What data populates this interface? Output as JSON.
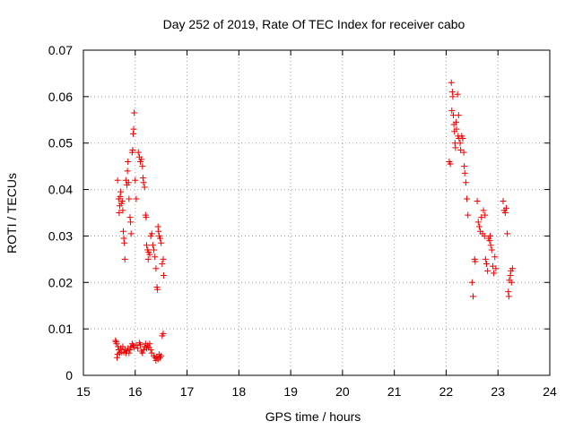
{
  "chart_data": {
    "type": "scatter",
    "title": "Day 252 of 2019, Rate Of TEC Index for receiver cabo",
    "xlabel": "GPS time / hours",
    "ylabel": "ROTI / TECUs",
    "xlim": [
      15,
      24
    ],
    "ylim": [
      0,
      0.07
    ],
    "x_ticks": [
      "15",
      "16",
      "17",
      "18",
      "19",
      "20",
      "21",
      "22",
      "23",
      "24"
    ],
    "y_ticks": [
      "0",
      "0.01",
      "0.02",
      "0.03",
      "0.04",
      "0.05",
      "0.06",
      "0.07"
    ],
    "grid": true,
    "marker": "+",
    "color": "#ee0000",
    "series": [
      {
        "name": "ROTI",
        "points": [
          [
            15.62,
            0.0075
          ],
          [
            15.63,
            0.0072
          ],
          [
            15.64,
            0.0068
          ],
          [
            15.65,
            0.0038
          ],
          [
            15.66,
            0.0045
          ],
          [
            15.67,
            0.0062
          ],
          [
            15.68,
            0.0055
          ],
          [
            15.7,
            0.0048
          ],
          [
            15.72,
            0.0058
          ],
          [
            15.74,
            0.005
          ],
          [
            15.76,
            0.0062
          ],
          [
            15.78,
            0.005
          ],
          [
            15.8,
            0.0055
          ],
          [
            15.82,
            0.0048
          ],
          [
            15.84,
            0.0052
          ],
          [
            15.86,
            0.0058
          ],
          [
            15.88,
            0.0048
          ],
          [
            15.9,
            0.0055
          ],
          [
            15.92,
            0.0062
          ],
          [
            15.94,
            0.0068
          ],
          [
            15.96,
            0.0064
          ],
          [
            15.98,
            0.006
          ],
          [
            16.02,
            0.0065
          ],
          [
            16.05,
            0.0058
          ],
          [
            16.08,
            0.007
          ],
          [
            16.1,
            0.0066
          ],
          [
            16.12,
            0.0052
          ],
          [
            16.14,
            0.0048
          ],
          [
            16.16,
            0.0055
          ],
          [
            16.18,
            0.0062
          ],
          [
            16.2,
            0.0068
          ],
          [
            16.22,
            0.0058
          ],
          [
            16.24,
            0.0064
          ],
          [
            16.26,
            0.006
          ],
          [
            16.28,
            0.0068
          ],
          [
            16.3,
            0.0055
          ],
          [
            16.32,
            0.0048
          ],
          [
            16.36,
            0.0042
          ],
          [
            16.38,
            0.0038
          ],
          [
            16.4,
            0.0032
          ],
          [
            16.42,
            0.004
          ],
          [
            16.44,
            0.0035
          ],
          [
            16.46,
            0.0045
          ],
          [
            16.48,
            0.0038
          ],
          [
            16.5,
            0.0042
          ],
          [
            16.52,
            0.0085
          ],
          [
            16.54,
            0.009
          ],
          [
            15.66,
            0.042
          ],
          [
            15.68,
            0.038
          ],
          [
            15.69,
            0.035
          ],
          [
            15.7,
            0.0365
          ],
          [
            15.71,
            0.0385
          ],
          [
            15.72,
            0.0395
          ],
          [
            15.73,
            0.037
          ],
          [
            15.75,
            0.0375
          ],
          [
            15.76,
            0.0355
          ],
          [
            15.77,
            0.031
          ],
          [
            15.78,
            0.0295
          ],
          [
            15.79,
            0.0285
          ],
          [
            15.8,
            0.025
          ],
          [
            15.82,
            0.042
          ],
          [
            15.84,
            0.041
          ],
          [
            15.85,
            0.044
          ],
          [
            15.86,
            0.046
          ],
          [
            15.87,
            0.0415
          ],
          [
            15.88,
            0.038
          ],
          [
            15.9,
            0.034
          ],
          [
            15.91,
            0.033
          ],
          [
            15.92,
            0.0305
          ],
          [
            15.94,
            0.048
          ],
          [
            15.95,
            0.0485
          ],
          [
            15.96,
            0.052
          ],
          [
            15.97,
            0.053
          ],
          [
            15.98,
            0.0565
          ],
          [
            16.0,
            0.042
          ],
          [
            16.02,
            0.038
          ],
          [
            16.06,
            0.048
          ],
          [
            16.08,
            0.047
          ],
          [
            16.1,
            0.046
          ],
          [
            16.12,
            0.0465
          ],
          [
            16.14,
            0.045
          ],
          [
            16.15,
            0.0425
          ],
          [
            16.16,
            0.0415
          ],
          [
            16.18,
            0.0405
          ],
          [
            16.2,
            0.0345
          ],
          [
            16.21,
            0.034
          ],
          [
            16.22,
            0.028
          ],
          [
            16.24,
            0.027
          ],
          [
            16.25,
            0.025
          ],
          [
            16.26,
            0.0265
          ],
          [
            16.28,
            0.026
          ],
          [
            16.3,
            0.03
          ],
          [
            16.32,
            0.0305
          ],
          [
            16.34,
            0.028
          ],
          [
            16.36,
            0.027
          ],
          [
            16.38,
            0.0255
          ],
          [
            16.4,
            0.023
          ],
          [
            16.42,
            0.019
          ],
          [
            16.43,
            0.0185
          ],
          [
            16.44,
            0.032
          ],
          [
            16.45,
            0.031
          ],
          [
            16.46,
            0.03
          ],
          [
            16.48,
            0.0295
          ],
          [
            16.5,
            0.0285
          ],
          [
            16.52,
            0.024
          ],
          [
            16.54,
            0.025
          ],
          [
            16.55,
            0.0215
          ],
          [
            22.06,
            0.046
          ],
          [
            22.08,
            0.0455
          ],
          [
            22.1,
            0.063
          ],
          [
            22.11,
            0.057
          ],
          [
            22.12,
            0.061
          ],
          [
            22.13,
            0.06
          ],
          [
            22.14,
            0.056
          ],
          [
            22.15,
            0.054
          ],
          [
            22.16,
            0.0525
          ],
          [
            22.17,
            0.05
          ],
          [
            22.18,
            0.049
          ],
          [
            22.19,
            0.0545
          ],
          [
            22.2,
            0.053
          ],
          [
            22.22,
            0.0605
          ],
          [
            22.23,
            0.0515
          ],
          [
            22.24,
            0.056
          ],
          [
            22.25,
            0.051
          ],
          [
            22.27,
            0.05
          ],
          [
            22.28,
            0.0485
          ],
          [
            22.3,
            0.0515
          ],
          [
            22.32,
            0.051
          ],
          [
            22.34,
            0.048
          ],
          [
            22.35,
            0.045
          ],
          [
            22.36,
            0.0435
          ],
          [
            22.38,
            0.0415
          ],
          [
            22.4,
            0.038
          ],
          [
            22.42,
            0.0345
          ],
          [
            22.5,
            0.02
          ],
          [
            22.52,
            0.017
          ],
          [
            22.55,
            0.025
          ],
          [
            22.56,
            0.0245
          ],
          [
            22.6,
            0.0375
          ],
          [
            22.62,
            0.033
          ],
          [
            22.64,
            0.032
          ],
          [
            22.66,
            0.031
          ],
          [
            22.68,
            0.034
          ],
          [
            22.7,
            0.0305
          ],
          [
            22.72,
            0.0355
          ],
          [
            22.74,
            0.03
          ],
          [
            22.75,
            0.0345
          ],
          [
            22.76,
            0.025
          ],
          [
            22.78,
            0.024
          ],
          [
            22.8,
            0.0225
          ],
          [
            22.82,
            0.0295
          ],
          [
            22.84,
            0.029
          ],
          [
            22.85,
            0.03
          ],
          [
            22.86,
            0.028
          ],
          [
            22.88,
            0.027
          ],
          [
            22.9,
            0.0235
          ],
          [
            22.92,
            0.022
          ],
          [
            22.94,
            0.0255
          ],
          [
            22.96,
            0.023
          ],
          [
            23.1,
            0.0375
          ],
          [
            23.12,
            0.0355
          ],
          [
            23.14,
            0.035
          ],
          [
            23.16,
            0.036
          ],
          [
            23.18,
            0.0305
          ],
          [
            23.2,
            0.018
          ],
          [
            23.21,
            0.017
          ],
          [
            23.22,
            0.0205
          ],
          [
            23.24,
            0.0215
          ],
          [
            23.25,
            0.0225
          ],
          [
            23.26,
            0.02
          ],
          [
            23.28,
            0.023
          ]
        ]
      }
    ]
  }
}
